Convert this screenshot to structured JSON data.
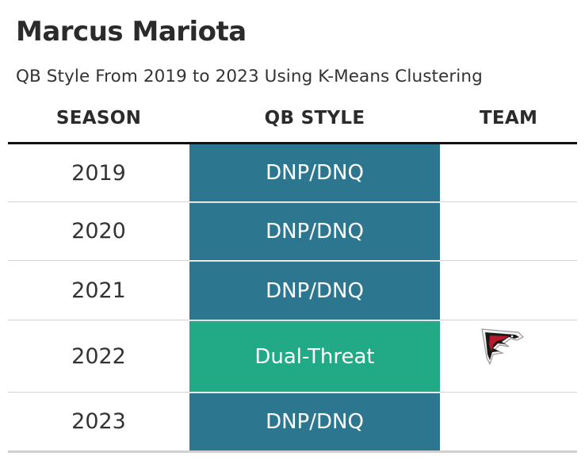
{
  "title": "Marcus Mariota",
  "subtitle": "QB Style From 2019 to 2023 Using K-Means Clustering",
  "columns": {
    "season": "SEASON",
    "qb_style": "QB STYLE",
    "team": "TEAM"
  },
  "colors": {
    "dnp": "#2c778f",
    "dual_threat": "#22aa86"
  },
  "rows": [
    {
      "season": "2019",
      "qb_style": "DNP/DNQ",
      "team_logo": ""
    },
    {
      "season": "2020",
      "qb_style": "DNP/DNQ",
      "team_logo": ""
    },
    {
      "season": "2021",
      "qb_style": "DNP/DNQ",
      "team_logo": ""
    },
    {
      "season": "2022",
      "qb_style": "Dual-Threat",
      "team_logo": "falcons-logo-icon"
    },
    {
      "season": "2023",
      "qb_style": "DNP/DNQ",
      "team_logo": ""
    }
  ]
}
